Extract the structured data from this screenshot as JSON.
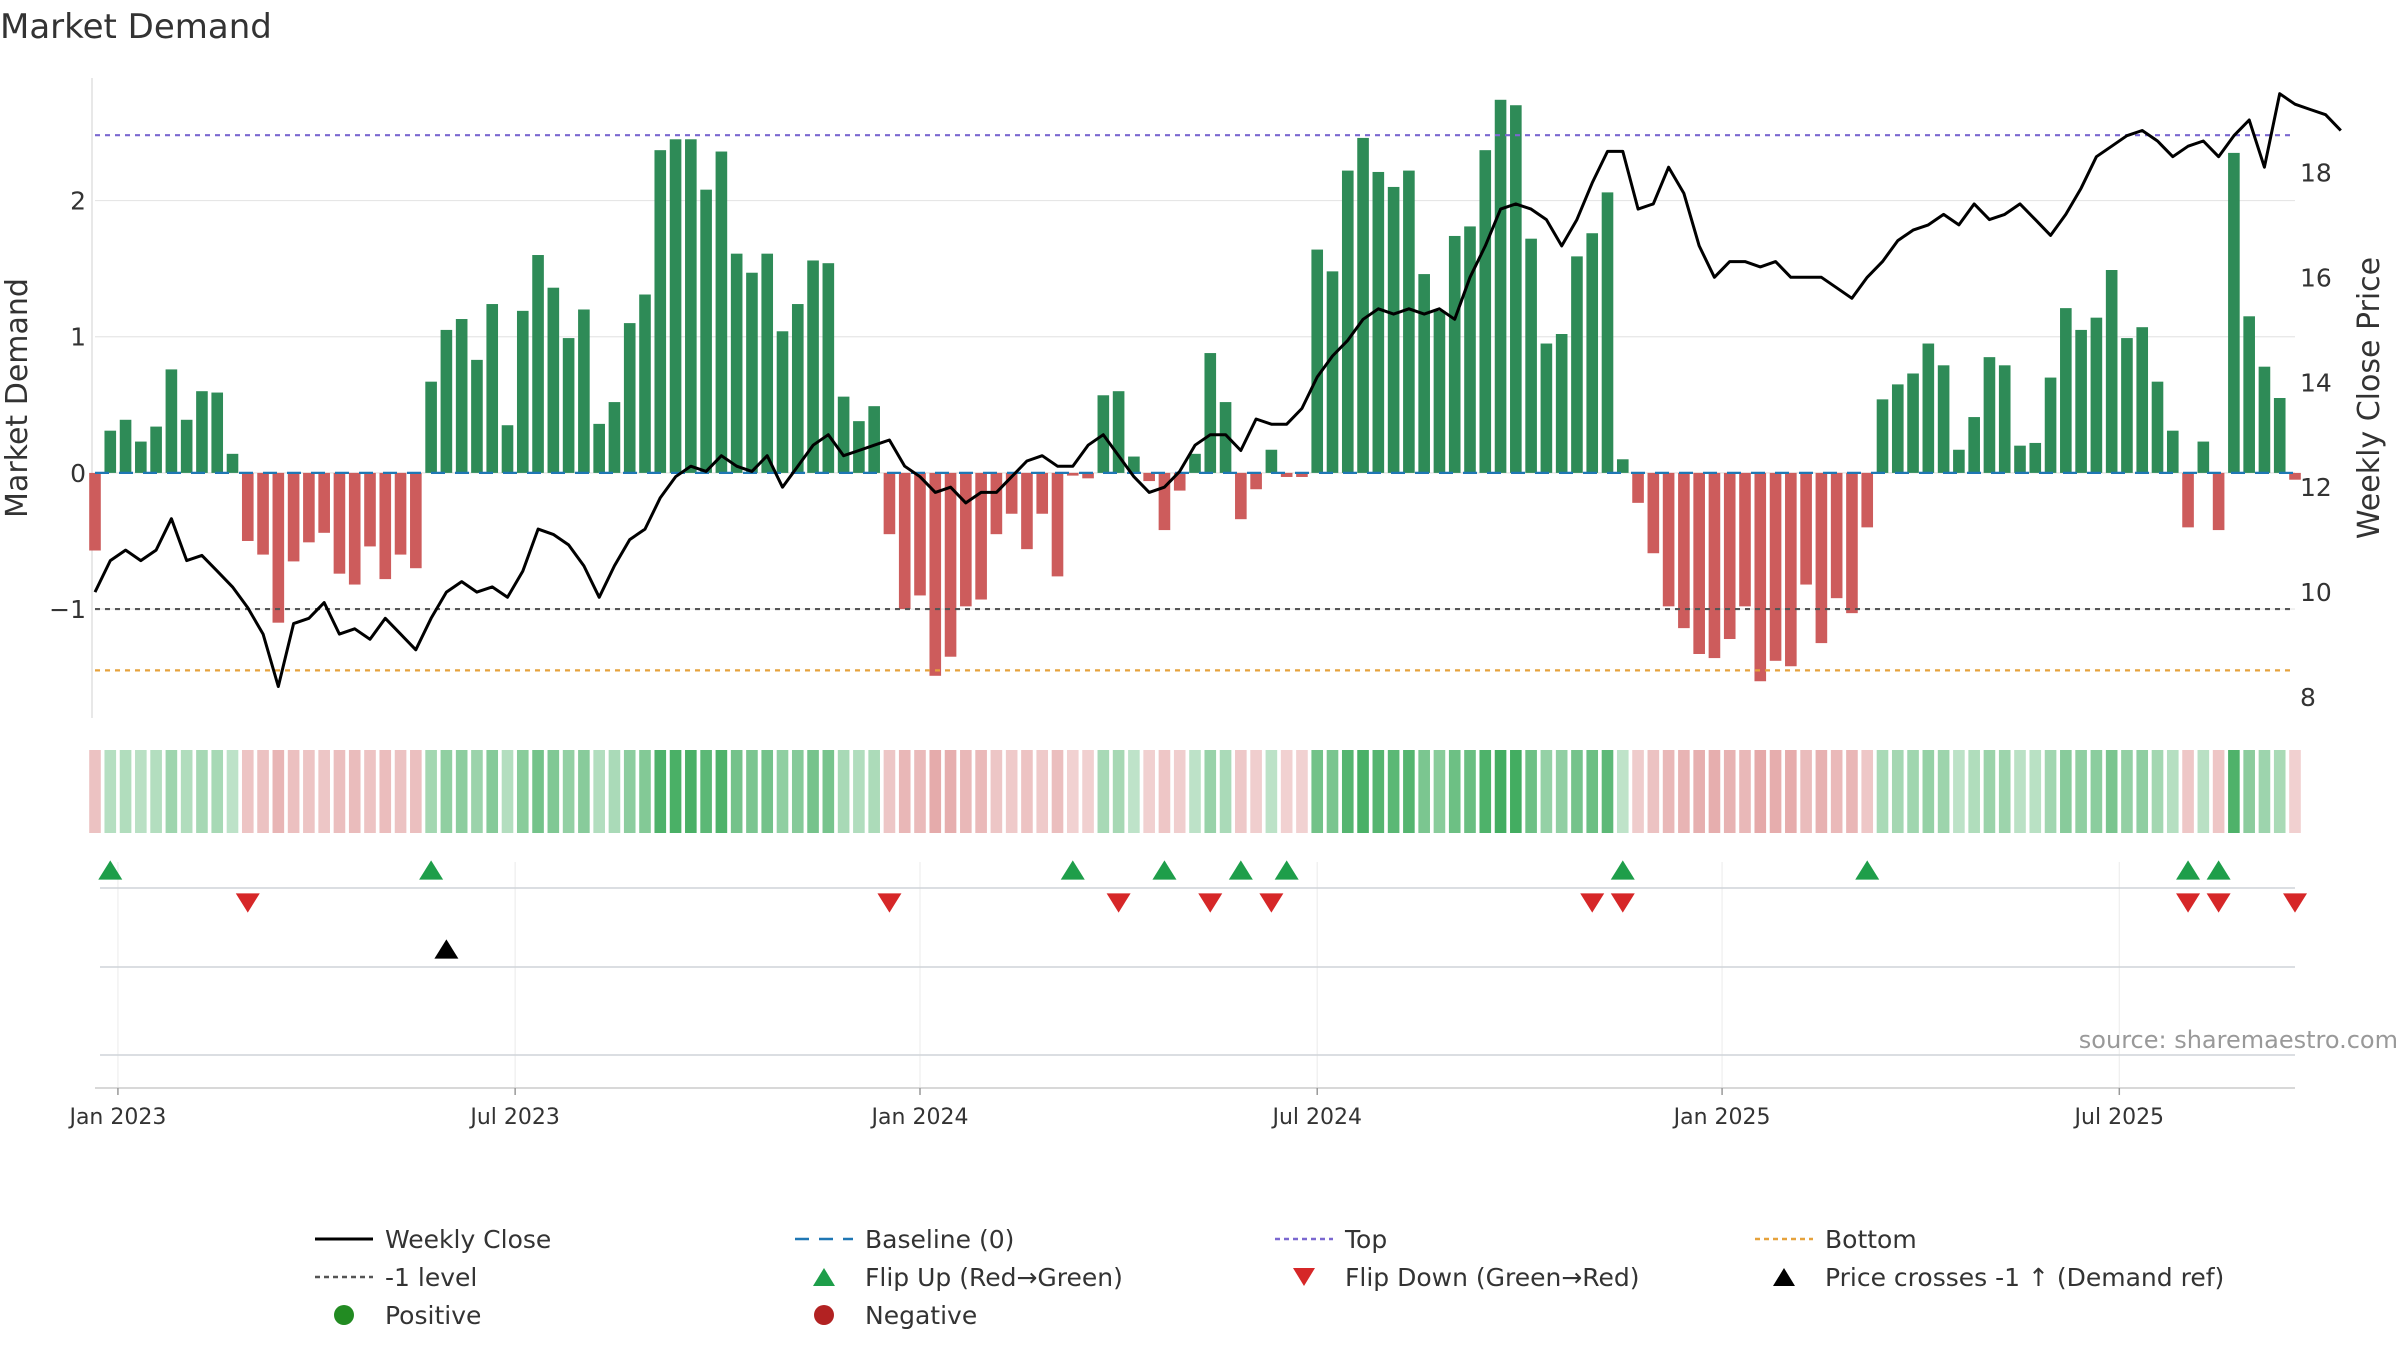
{
  "title": "Market Demand",
  "source": "source: sharemaestro.com",
  "colors": {
    "positive": "#2e8b57",
    "negative": "#cd5c5c",
    "close": "#000000",
    "top": "#7b68d0",
    "bottom": "#e6a23c",
    "minus1": "#555555",
    "baseline": "#1f77b4",
    "flip_up": "#1e9e4a",
    "flip_down": "#d62728",
    "price_cross": "#000000",
    "pos_dot": "#228b22",
    "neg_dot": "#b22222",
    "grid": "#e6e6e6",
    "text": "#333333"
  },
  "chart_data": {
    "type": "bar",
    "title": "Market Demand",
    "ylabel": "Market Demand",
    "y2label": "Weekly Close Price",
    "ylim": [
      -1.8,
      2.9
    ],
    "y2lim": [
      7.6,
      19.8
    ],
    "yticks": [
      -1,
      0,
      1,
      2
    ],
    "yticklabels": [
      "−1",
      "0",
      "1",
      "2"
    ],
    "y2ticks": [
      8,
      10,
      12,
      14,
      16,
      18
    ],
    "y2ticklabels": [
      "8",
      "10",
      "12",
      "14",
      "16",
      "18"
    ],
    "x_start": 0,
    "x_end": 144,
    "xticks": [
      {
        "label": "Jan 2023",
        "week": 1.5
      },
      {
        "label": "Jul 2023",
        "week": 27.5
      },
      {
        "label": "Jan 2024",
        "week": 54
      },
      {
        "label": "Jul 2024",
        "week": 80
      },
      {
        "label": "Jan 2025",
        "week": 106.5
      },
      {
        "label": "Jul 2025",
        "week": 132.5
      }
    ],
    "reference_lines": {
      "top": 2.48,
      "bottom": -1.45,
      "minus1": -1.0,
      "baseline": 0
    },
    "demand": [
      -0.57,
      0.31,
      0.39,
      0.23,
      0.34,
      0.76,
      0.39,
      0.6,
      0.59,
      0.14,
      -0.5,
      -0.6,
      -1.1,
      -0.65,
      -0.51,
      -0.44,
      -0.74,
      -0.82,
      -0.54,
      -0.78,
      -0.6,
      -0.7,
      0.67,
      1.05,
      1.13,
      0.83,
      1.24,
      0.35,
      1.19,
      1.6,
      1.36,
      0.99,
      1.2,
      0.36,
      0.52,
      1.1,
      1.31,
      2.37,
      2.45,
      2.45,
      2.08,
      2.36,
      1.61,
      1.47,
      1.61,
      1.04,
      1.24,
      1.56,
      1.54,
      0.56,
      0.38,
      0.49,
      -0.45,
      -1.0,
      -0.9,
      -1.49,
      -1.35,
      -0.98,
      -0.93,
      -0.45,
      -0.3,
      -0.56,
      -0.3,
      -0.76,
      -0.02,
      -0.04,
      0.57,
      0.6,
      0.12,
      -0.06,
      -0.42,
      -0.13,
      0.14,
      0.88,
      0.52,
      -0.34,
      -0.12,
      0.17,
      -0.03,
      -0.03,
      1.64,
      1.48,
      2.22,
      2.46,
      2.21,
      2.1,
      2.22,
      1.46,
      1.19,
      1.74,
      1.81,
      2.37,
      2.74,
      2.7,
      1.72,
      0.95,
      1.02,
      1.59,
      1.76,
      2.06,
      0.1,
      -0.22,
      -0.59,
      -0.98,
      -1.14,
      -1.33,
      -1.36,
      -1.22,
      -0.98,
      -1.53,
      -1.38,
      -1.42,
      -0.82,
      -1.25,
      -0.92,
      -1.03,
      -0.4,
      0.54,
      0.65,
      0.73,
      0.95,
      0.79,
      0.17,
      0.41,
      0.85,
      0.79,
      0.2,
      0.22,
      0.7,
      1.21,
      1.05,
      1.14,
      1.49,
      0.99,
      1.07,
      0.67,
      0.31,
      -0.4,
      0.23,
      -0.42,
      2.35,
      1.15,
      0.78,
      0.55,
      -0.05
    ],
    "close": [
      10.0,
      10.6,
      10.8,
      10.6,
      10.8,
      11.4,
      10.6,
      10.7,
      10.4,
      10.1,
      9.7,
      9.2,
      8.2,
      9.4,
      9.5,
      9.8,
      9.2,
      9.3,
      9.1,
      9.5,
      9.2,
      8.9,
      9.5,
      10.0,
      10.2,
      10.0,
      10.1,
      9.9,
      10.4,
      11.2,
      11.1,
      10.9,
      10.5,
      9.9,
      10.5,
      11.0,
      11.2,
      11.8,
      12.2,
      12.4,
      12.3,
      12.6,
      12.4,
      12.3,
      12.6,
      12.0,
      12.4,
      12.8,
      13.0,
      12.6,
      12.7,
      12.8,
      12.9,
      12.4,
      12.2,
      11.9,
      12.0,
      11.7,
      11.9,
      11.9,
      12.2,
      12.5,
      12.6,
      12.4,
      12.4,
      12.8,
      13.0,
      12.6,
      12.2,
      11.9,
      12.0,
      12.3,
      12.8,
      13.0,
      13.0,
      12.7,
      13.3,
      13.2,
      13.2,
      13.5,
      14.1,
      14.5,
      14.8,
      15.2,
      15.4,
      15.3,
      15.4,
      15.3,
      15.4,
      15.2,
      16.0,
      16.6,
      17.3,
      17.4,
      17.3,
      17.1,
      16.6,
      17.1,
      17.8,
      18.4,
      18.4,
      17.3,
      17.4,
      18.1,
      17.6,
      16.6,
      16.0,
      16.3,
      16.3,
      16.2,
      16.3,
      16.0,
      16.0,
      16.0,
      15.8,
      15.6,
      16.0,
      16.3,
      16.7,
      16.9,
      17.0,
      17.2,
      17.0,
      17.4,
      17.1,
      17.2,
      17.4,
      17.1,
      16.8,
      17.2,
      17.7,
      18.3,
      18.5,
      18.7,
      18.8,
      18.6,
      18.3,
      18.5,
      18.6,
      18.3,
      18.7,
      19.0,
      18.1,
      19.5,
      19.3,
      19.2,
      19.1,
      18.8
    ],
    "flip_up_weeks": [
      1,
      22,
      64,
      70,
      75,
      78,
      100,
      116,
      137,
      139
    ],
    "flip_down_weeks": [
      10,
      52,
      67,
      73,
      77,
      98,
      100,
      137,
      139,
      144
    ],
    "price_cross_weeks": [
      23
    ],
    "legend": [
      {
        "label": "Weekly Close",
        "key": "close",
        "marker": "line"
      },
      {
        "label": "Baseline (0)",
        "key": "baseline",
        "marker": "dash"
      },
      {
        "label": "Top",
        "key": "top",
        "marker": "dot"
      },
      {
        "label": "Bottom",
        "key": "bottom",
        "marker": "dot"
      },
      {
        "label": "-1 level",
        "key": "minus1",
        "marker": "dot"
      },
      {
        "label": "Flip Up (Red→Green)",
        "key": "flip_up",
        "marker": "tri-up"
      },
      {
        "label": "Flip Down (Green→Red)",
        "key": "flip_down",
        "marker": "tri-down"
      },
      {
        "label": "Price crosses -1 ↑ (Demand ref)",
        "key": "price_cross",
        "marker": "tri-up"
      },
      {
        "label": "Positive",
        "key": "pos_dot",
        "marker": "circle"
      },
      {
        "label": "Negative",
        "key": "neg_dot",
        "marker": "circle"
      }
    ]
  }
}
